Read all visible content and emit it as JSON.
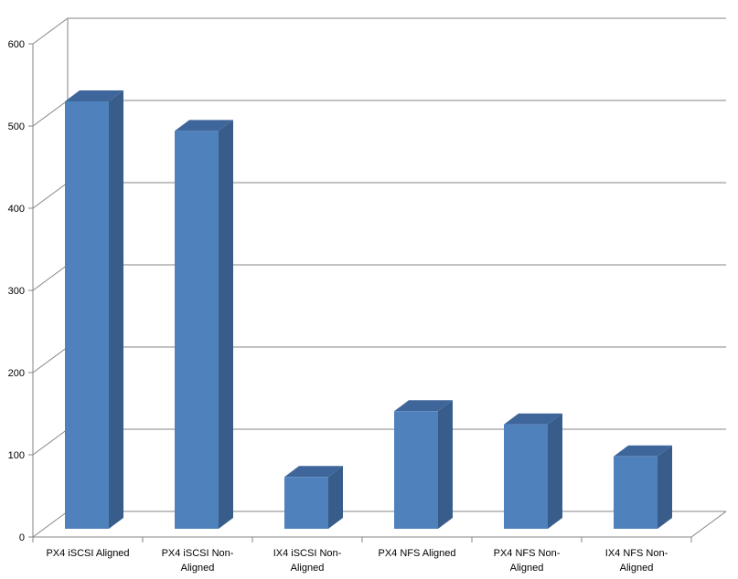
{
  "chart_data": {
    "type": "bar",
    "style": "3d-column",
    "categories": [
      [
        "PX4 iSCSI Aligned"
      ],
      [
        "PX4 iSCSI Non-",
        "Aligned"
      ],
      [
        "IX4 iSCSI Non-",
        "Aligned"
      ],
      [
        "PX4 NFS Aligned"
      ],
      [
        "PX4 NFS Non-",
        "Aligned"
      ],
      [
        "IX4 NFS Non-",
        "Aligned"
      ]
    ],
    "values": [
      520,
      484,
      63,
      143,
      127,
      88
    ],
    "ylim": [
      0,
      600
    ],
    "yticks": [
      "0",
      "100",
      "200",
      "300",
      "400",
      "500",
      "600"
    ],
    "grid": true,
    "legend": "none",
    "colors": {
      "front": "#4F81BD",
      "side": "#385D8A",
      "top": "#3F669A",
      "grid": "#868686"
    }
  }
}
